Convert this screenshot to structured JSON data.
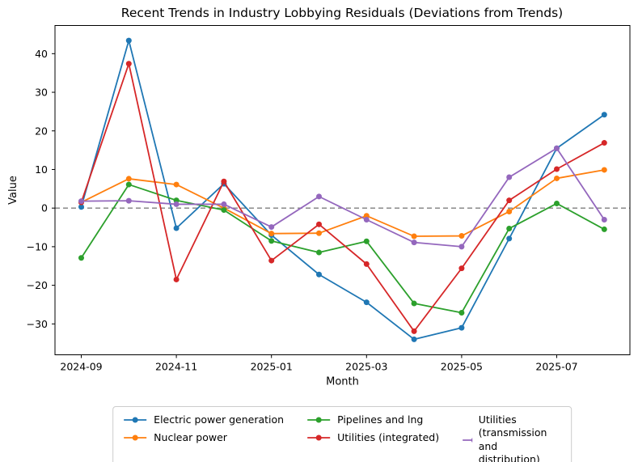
{
  "title": "Recent Trends in Industry Lobbying Residuals (Deviations from Trends)",
  "chart_data": {
    "type": "line",
    "title": "Recent Trends in Industry Lobbying Residuals (Deviations from Trends)",
    "xlabel": "Month",
    "ylabel": "Value",
    "x": [
      "2024-09",
      "2024-10",
      "2024-11",
      "2024-12",
      "2025-01",
      "2025-02",
      "2025-03",
      "2025-04",
      "2025-05",
      "2025-06",
      "2025-07",
      "2025-08"
    ],
    "x_tick_labels": [
      "2024-09",
      "2024-11",
      "2025-01",
      "2025-03",
      "2025-05",
      "2025-07"
    ],
    "y_ticks": [
      40,
      30,
      20,
      10,
      0,
      -10,
      -20,
      -30
    ],
    "ylim": [
      -38.0,
      47.3
    ],
    "grid": false,
    "zero_line": {
      "show": true,
      "style": "dashed",
      "color": "#7f7f7f"
    },
    "legend_position": "below-center",
    "marker": "circle",
    "series": [
      {
        "name": "Electric power generation",
        "color": "#1f77b4",
        "values": [
          0.3,
          43.4,
          -5.2,
          6.3,
          -7.0,
          -17.2,
          -24.4,
          -34.0,
          -31.0,
          -7.9,
          15.5,
          24.2
        ]
      },
      {
        "name": "Nuclear power",
        "color": "#ff7f0e",
        "values": [
          1.5,
          7.6,
          6.1,
          0.0,
          -6.6,
          -6.5,
          -2.0,
          -7.3,
          -7.2,
          -0.9,
          7.7,
          9.9
        ]
      },
      {
        "name": "Pipelines and lng",
        "color": "#2ca02c",
        "values": [
          -12.9,
          6.1,
          2.0,
          -0.5,
          -8.5,
          -11.5,
          -8.6,
          -24.7,
          -27.1,
          -5.3,
          1.2,
          -5.5
        ]
      },
      {
        "name": "Utilities (integrated)",
        "color": "#d62728",
        "values": [
          1.5,
          37.4,
          -18.5,
          6.9,
          -13.6,
          -4.2,
          -14.5,
          -31.9,
          -15.6,
          2.0,
          10.1,
          16.9
        ]
      },
      {
        "name": "Utilities (transmission and distribution)",
        "color": "#9467bd",
        "values": [
          1.8,
          1.9,
          1.0,
          1.0,
          -4.9,
          3.0,
          -3.0,
          -8.9,
          -10.0,
          8.0,
          15.5,
          -3.0
        ]
      }
    ],
    "legend_columns": [
      [
        0,
        1
      ],
      [
        2,
        3
      ],
      [
        4
      ]
    ]
  }
}
